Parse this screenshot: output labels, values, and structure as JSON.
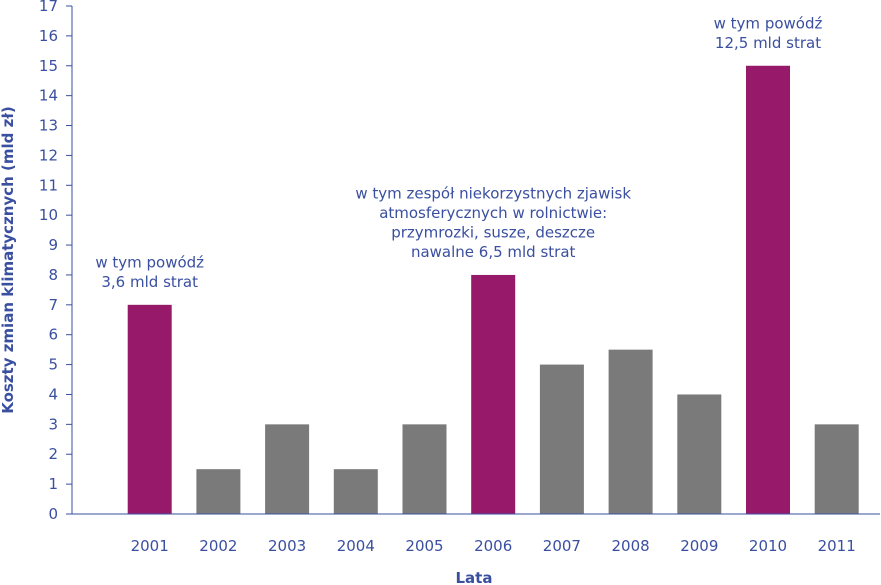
{
  "chart_data": {
    "type": "bar",
    "categories": [
      "2001",
      "2002",
      "2003",
      "2004",
      "2005",
      "2006",
      "2007",
      "2008",
      "2009",
      "2010",
      "2011"
    ],
    "values": [
      7,
      1.5,
      3,
      1.5,
      3,
      8,
      5,
      5.5,
      4,
      15,
      3
    ],
    "highlighted": [
      true,
      false,
      false,
      false,
      false,
      true,
      false,
      false,
      false,
      true,
      false
    ],
    "xlabel": "Lata",
    "ylabel": "Koszty zmian klimatycznych (mld zł)",
    "ylim": [
      0,
      17
    ],
    "yticks": [
      0,
      1,
      2,
      3,
      4,
      5,
      6,
      7,
      8,
      9,
      10,
      11,
      12,
      13,
      14,
      15,
      16,
      17
    ],
    "grid": false,
    "colors": {
      "highlight": "#96196a",
      "default": "#7a7a7a",
      "axis": "#3a4fa0"
    },
    "annotations": [
      {
        "category": "2001",
        "lines": [
          "w tym powódź",
          "3,6 mld strat"
        ]
      },
      {
        "category": "2006",
        "lines": [
          "w tym zespół niekorzystnych zjawisk",
          "atmosferycznych w rolnictwie:",
          "przymrozki, susze, deszcze",
          "nawalne 6,5 mld strat"
        ]
      },
      {
        "category": "2010",
        "lines": [
          "w tym powódź",
          "12,5 mld strat"
        ]
      }
    ]
  }
}
